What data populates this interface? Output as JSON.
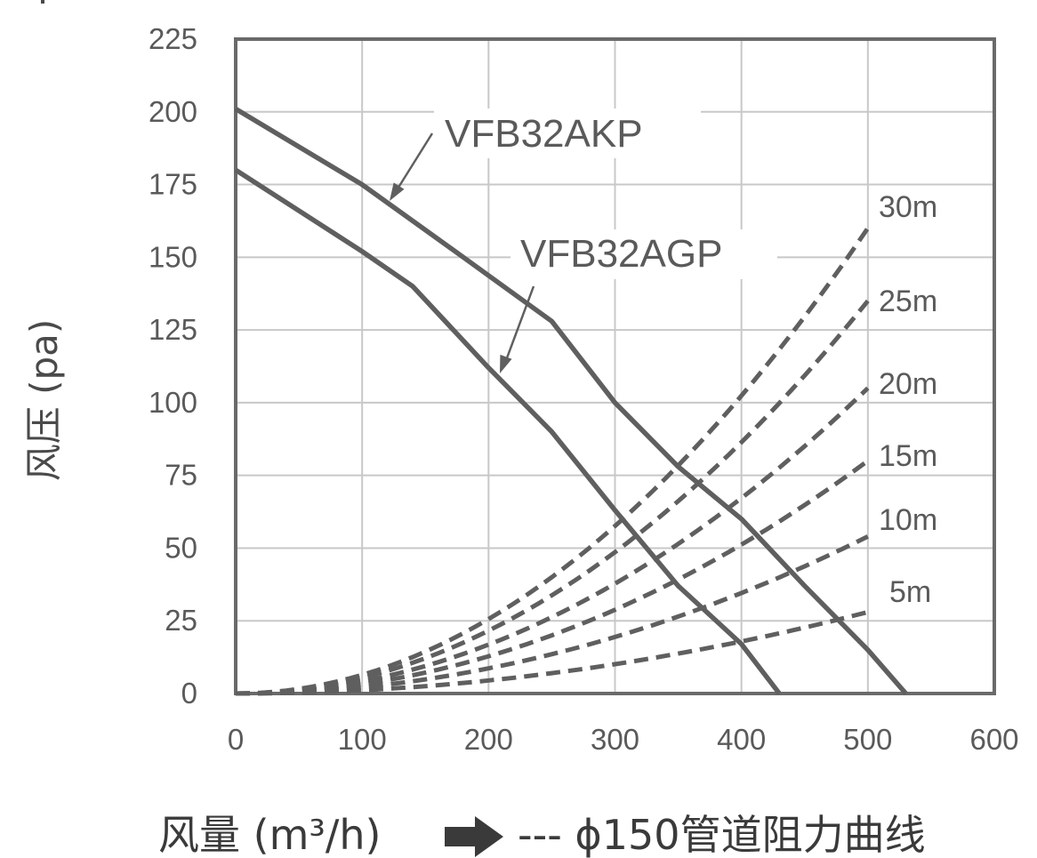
{
  "chart_data": {
    "type": "line",
    "xlabel": "风量 (m³/h)",
    "ylabel": "风压 (pa)",
    "xlim": [
      0,
      600
    ],
    "ylim": [
      0,
      225
    ],
    "xticks": [
      0,
      100,
      200,
      300,
      400,
      500,
      600
    ],
    "yticks": [
      0,
      25,
      50,
      75,
      100,
      125,
      150,
      175,
      200,
      225
    ],
    "xtick_labels": [
      "0",
      "100",
      "200",
      "300",
      "400",
      "500",
      "600"
    ],
    "ytick_labels": [
      "0",
      "25",
      "50",
      "75",
      "100",
      "125",
      "150",
      "175",
      "200",
      "225"
    ],
    "grid": true,
    "series": [
      {
        "name": "VFB32AKP",
        "style": "solid",
        "x": [
          0,
          100,
          180,
          250,
          300,
          350,
          400,
          450,
          500,
          530
        ],
        "y": [
          201,
          175,
          150,
          128,
          100,
          78,
          60,
          37,
          15,
          0
        ]
      },
      {
        "name": "VFB32AGP",
        "style": "solid",
        "x": [
          0,
          100,
          140,
          200,
          250,
          300,
          350,
          400,
          430
        ],
        "y": [
          180,
          152,
          140,
          112,
          90,
          63,
          37,
          17,
          0
        ]
      }
    ],
    "resistance_curves": {
      "legend": "--- ϕ150管道阻力曲线",
      "style": "dashed",
      "curves": [
        {
          "label": "5m",
          "x": [
            0,
            100,
            200,
            300,
            400,
            500
          ],
          "y": [
            0,
            1.1,
            4.5,
            10.1,
            18.0,
            28.0
          ]
        },
        {
          "label": "10m",
          "x": [
            0,
            100,
            200,
            300,
            400,
            500
          ],
          "y": [
            0,
            2.2,
            8.6,
            19.4,
            34.6,
            54.0
          ]
        },
        {
          "label": "15m",
          "x": [
            0,
            100,
            200,
            300,
            400,
            500
          ],
          "y": [
            0,
            3.2,
            12.8,
            28.8,
            51.2,
            80.0
          ]
        },
        {
          "label": "20m",
          "x": [
            0,
            100,
            200,
            300,
            400,
            500
          ],
          "y": [
            0,
            4.2,
            16.8,
            37.8,
            67.2,
            105.0
          ]
        },
        {
          "label": "25m",
          "x": [
            0,
            100,
            200,
            300,
            400,
            500
          ],
          "y": [
            0,
            5.4,
            21.6,
            48.6,
            86.4,
            135.0
          ]
        },
        {
          "label": "30m",
          "x": [
            0,
            100,
            200,
            300,
            400,
            500
          ],
          "y": [
            0,
            6.4,
            25.6,
            57.6,
            102.4,
            160.0
          ]
        }
      ]
    },
    "colors": {
      "line": "#5f5f5f",
      "grid": "#c8c8c8",
      "frame": "#6a6a6a"
    }
  }
}
